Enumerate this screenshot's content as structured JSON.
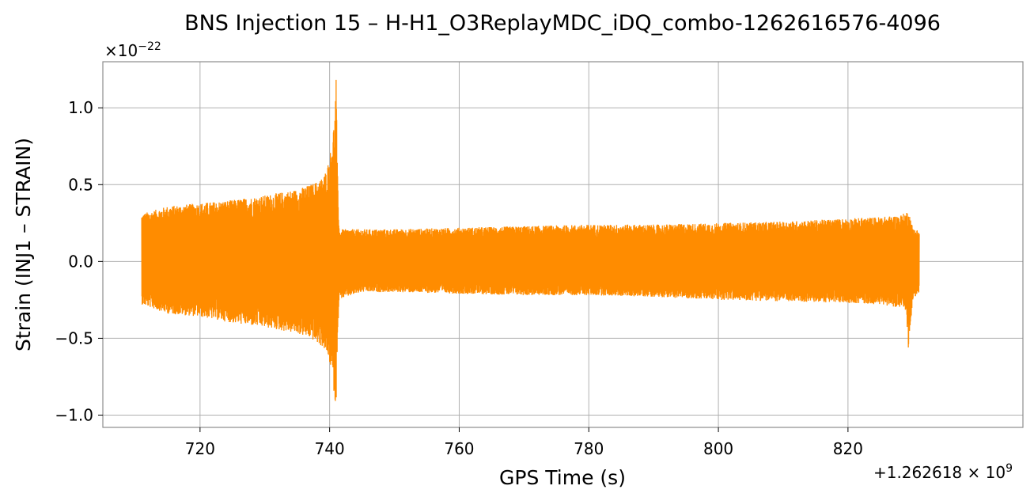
{
  "chart_data": {
    "type": "line",
    "title": "BNS Injection 15 – H-H1_O3ReplayMDC_iDQ_combo-1262616576-4096",
    "xlabel": "GPS Time (s)",
    "ylabel": "Strain (INJ1 – STRAIN)",
    "x_offset_label_prefix": "+1.262618",
    "x_offset_label_suffix": "9",
    "y_scale_label_prefix": "×10",
    "y_scale_label_exponent": "−22",
    "xlim": [
      705,
      847
    ],
    "ylim": [
      -1.08,
      1.3
    ],
    "x_ticks": [
      720,
      740,
      760,
      780,
      800,
      820
    ],
    "x_tick_labels": [
      "720",
      "740",
      "760",
      "780",
      "800",
      "820"
    ],
    "y_ticks": [
      -1.0,
      -0.5,
      0.0,
      0.5,
      1.0
    ],
    "y_tick_labels": [
      "−1.0",
      "−0.5",
      "0.0",
      "0.5",
      "1.0"
    ],
    "grid": true,
    "series_color": "#ff8c00",
    "series": [
      {
        "envelope_x": [
          711,
          715,
          720,
          725,
          730,
          735,
          737,
          738,
          739,
          739.5,
          740,
          740.4,
          740.8,
          741.0,
          741.2,
          741.5,
          742,
          745,
          750,
          760,
          770,
          780,
          790,
          800,
          810,
          820,
          825,
          828,
          829,
          829.3,
          830,
          831
        ],
        "envelope_upper": [
          0.31,
          0.36,
          0.38,
          0.4,
          0.43,
          0.47,
          0.5,
          0.52,
          0.55,
          0.6,
          0.68,
          0.8,
          0.95,
          1.2,
          0.6,
          0.2,
          0.21,
          0.21,
          0.21,
          0.22,
          0.23,
          0.24,
          0.24,
          0.25,
          0.26,
          0.28,
          0.29,
          0.3,
          0.32,
          0.34,
          0.22,
          0.2
        ],
        "envelope_lower": [
          -0.28,
          -0.34,
          -0.36,
          -0.4,
          -0.43,
          -0.47,
          -0.5,
          -0.53,
          -0.56,
          -0.6,
          -0.66,
          -0.75,
          -0.9,
          -0.97,
          -0.5,
          -0.24,
          -0.24,
          -0.2,
          -0.2,
          -0.21,
          -0.22,
          -0.22,
          -0.23,
          -0.25,
          -0.26,
          -0.27,
          -0.28,
          -0.3,
          -0.33,
          -0.57,
          -0.25,
          -0.2
        ]
      }
    ]
  }
}
